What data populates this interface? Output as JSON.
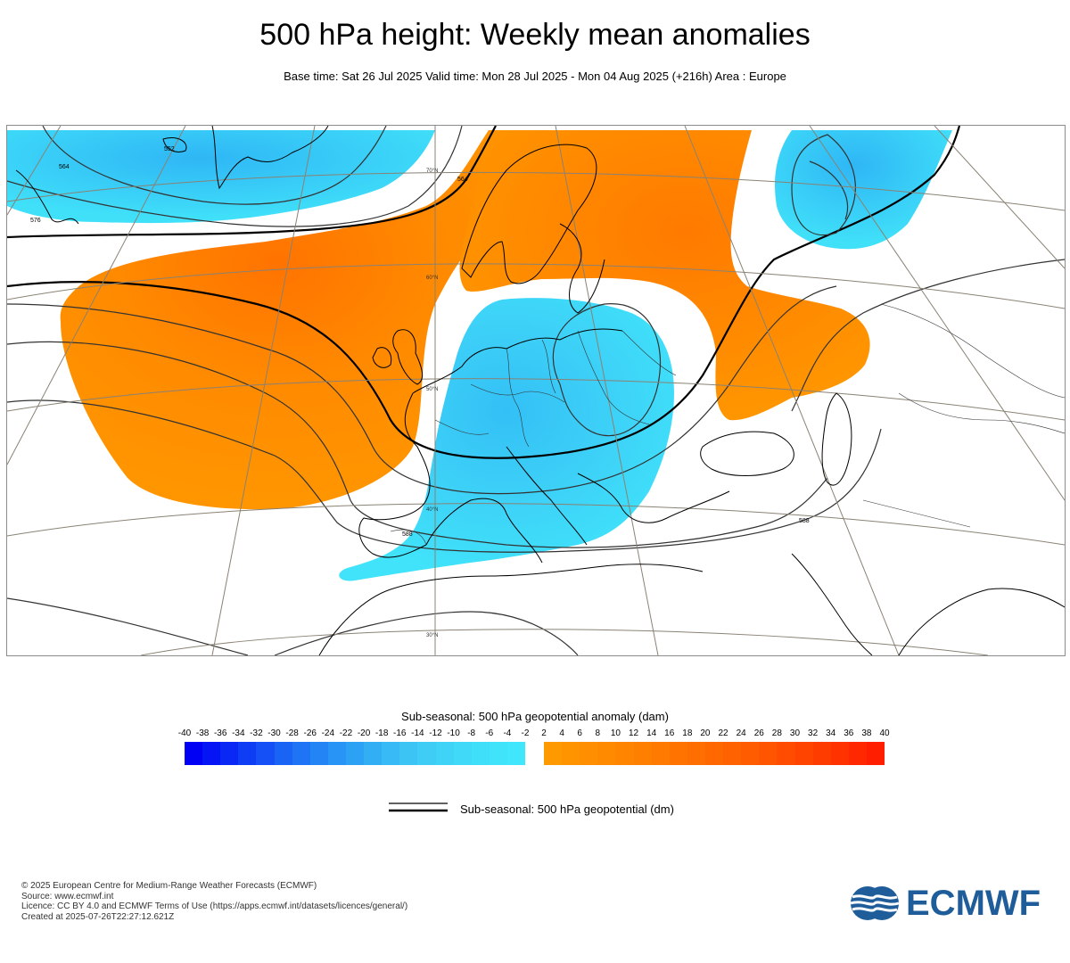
{
  "header": {
    "title": "500 hPa height: Weekly mean anomalies",
    "subtitle": "Base time: Sat 26 Jul 2025 Valid time: Mon 28 Jul 2025 - Mon 04 Aug 2025 (+216h) Area : Europe"
  },
  "map": {
    "region": "Europe",
    "contour_labels": [
      {
        "text": "552",
        "value": 552
      },
      {
        "text": "564",
        "value": 564
      },
      {
        "text": "576",
        "value": 576
      },
      {
        "text": "588",
        "value": 588
      },
      {
        "text": "564",
        "value": 564
      },
      {
        "text": "588",
        "value": 588
      }
    ],
    "lat_labels": [
      "70°N",
      "60°N",
      "50°N",
      "40°N",
      "30°N"
    ],
    "anomaly_regions": [
      {
        "type": "negative",
        "location": "Greenland"
      },
      {
        "type": "negative",
        "location": "Central Europe / Italy"
      },
      {
        "type": "negative",
        "location": "Northern Russia"
      },
      {
        "type": "positive",
        "location": "North Atlantic"
      },
      {
        "type": "positive",
        "location": "Scandinavia"
      },
      {
        "type": "positive",
        "location": "Eastern Europe / Caspian"
      }
    ]
  },
  "legend": {
    "anomaly_title": "Sub-seasonal: 500 hPa geopotential anomaly (dam)",
    "negative_ticks": [
      "-40",
      "-38",
      "-36",
      "-34",
      "-32",
      "-30",
      "-28",
      "-26",
      "-24",
      "-22",
      "-20",
      "-18",
      "-16",
      "-14",
      "-12",
      "-10",
      "-8",
      "-6",
      "-4",
      "-2"
    ],
    "positive_ticks": [
      "2",
      "4",
      "6",
      "8",
      "10",
      "12",
      "14",
      "16",
      "18",
      "20",
      "22",
      "24",
      "26",
      "28",
      "30",
      "32",
      "34",
      "36",
      "38",
      "40"
    ],
    "negative_colors": [
      "#0000f5",
      "#0514f5",
      "#0a28f5",
      "#0f3cf5",
      "#1450f5",
      "#1964f5",
      "#1e74f5",
      "#2384f5",
      "#2894f5",
      "#2da2f5",
      "#32aef5",
      "#37baf5",
      "#3cc4f5",
      "#3fcdf6",
      "#3fd4f7",
      "#40daf8",
      "#40dff9",
      "#40e3fa",
      "#40e6fb"
    ],
    "positive_colors": [
      "#ff9900",
      "#ff9400",
      "#ff8f00",
      "#ff8a00",
      "#ff8500",
      "#ff8000",
      "#ff7a00",
      "#ff7400",
      "#ff6e00",
      "#ff6800",
      "#ff6200",
      "#ff5c00",
      "#ff5400",
      "#ff4c00",
      "#ff4400",
      "#ff3c00",
      "#ff3200",
      "#ff2800",
      "#ff1e00"
    ],
    "line_label": "Sub-seasonal: 500 hPa geopotential (dm)"
  },
  "footer": {
    "lines": [
      "© 2025 European Centre for Medium-Range Weather Forecasts (ECMWF)",
      "Source: www.ecmwf.int",
      "Licence: CC BY 4.0 and ECMWF Terms of Use (https://apps.ecmwf.int/datasets/licences/general/)",
      "Created at 2025-07-26T22:27:12.621Z"
    ]
  },
  "logo": {
    "text": "ECMWF",
    "color": "#1f5d9a"
  },
  "colors": {
    "negative": "#40e0f8",
    "positive": "#ff9500",
    "positive_core": "#ff7000"
  }
}
